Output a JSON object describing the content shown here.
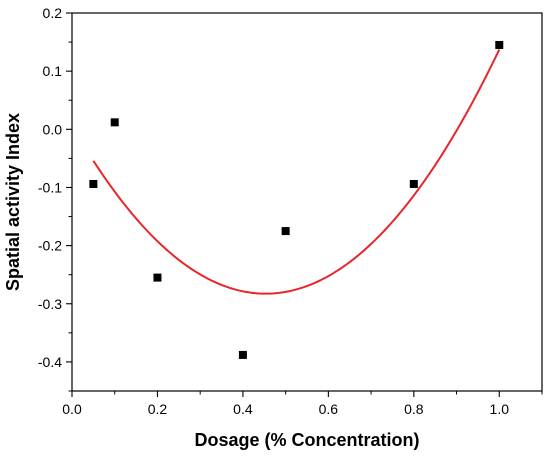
{
  "chart_data": {
    "type": "scatter",
    "title": "",
    "xlabel": "Dosage (% Concentration)",
    "ylabel": "Spatial activity Index",
    "xlim": [
      0.0,
      1.1
    ],
    "ylim": [
      -0.45,
      0.2
    ],
    "x_ticks": [
      0.0,
      0.2,
      0.4,
      0.6,
      0.8,
      1.0
    ],
    "x_tick_labels": [
      "0.0",
      "0.2",
      "0.4",
      "0.6",
      "0.8",
      "1.0"
    ],
    "y_ticks": [
      -0.4,
      -0.3,
      -0.2,
      -0.1,
      0.0,
      0.1,
      0.2
    ],
    "y_tick_labels": [
      "-0.4",
      "-0.3",
      "-0.2",
      "-0.1",
      "0.0",
      "0.1",
      "0.2"
    ],
    "grid": false,
    "legend": "none",
    "series": [
      {
        "type": "scatter",
        "marker": "square",
        "color": "#000000",
        "points": [
          {
            "x": 0.05,
            "y": -0.094
          },
          {
            "x": 0.1,
            "y": 0.012
          },
          {
            "x": 0.2,
            "y": -0.255
          },
          {
            "x": 0.4,
            "y": -0.388
          },
          {
            "x": 0.5,
            "y": -0.175
          },
          {
            "x": 0.8,
            "y": -0.094
          },
          {
            "x": 1.0,
            "y": 0.145
          }
        ]
      },
      {
        "type": "line",
        "color": "#e8262a",
        "fit": "quadratic",
        "coefficients": {
          "a": 1.4048,
          "b": -1.2737,
          "c": 0.0061
        },
        "x_range": [
          0.05,
          1.0
        ]
      }
    ]
  }
}
